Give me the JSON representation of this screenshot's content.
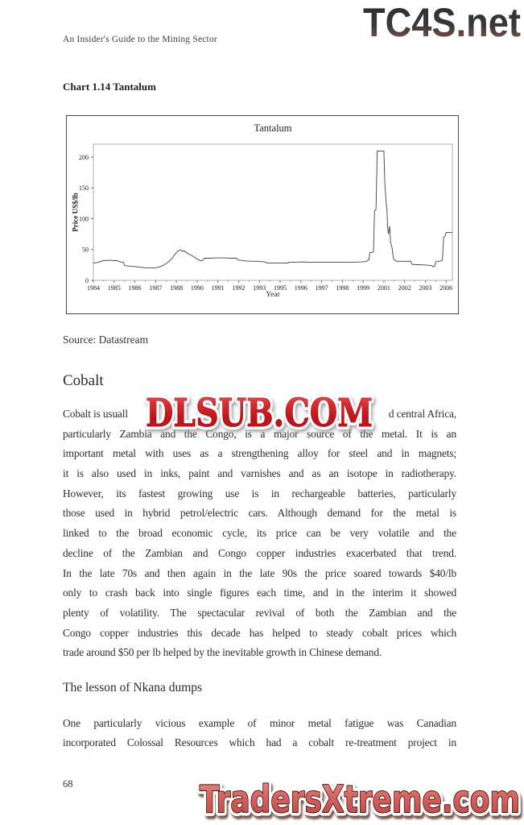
{
  "page": {
    "header": "An Insider's Guide to the Mining Sector",
    "page_number": "68"
  },
  "watermarks": {
    "top_right": "TC4S.net",
    "middle": "DLSUB.COM",
    "bottom": "TradersXtreme.com"
  },
  "colors": {
    "watermark_red": "#c6191f",
    "watermark_salmon": "#d4625f",
    "logo_dark": "#343434",
    "body_text": "#2e2e2e",
    "chart_line": "#3f3f3f"
  },
  "chart_section": {
    "label": "Chart 1.14 Tantalum",
    "source": "Source: Datastream"
  },
  "chart_data": {
    "type": "line",
    "title": "Tantalum",
    "xlabel": "Year",
    "ylabel": "Price US$/lb",
    "legend": "none",
    "grid": false,
    "ylim": [
      0,
      221
    ],
    "yticks": [
      0,
      50,
      100,
      150,
      200
    ],
    "xtick_labels": [
      "1984",
      "1985",
      "1986",
      "1987",
      "1988",
      "1990",
      "1991",
      "1992",
      "1993",
      "1995",
      "1996",
      "1997",
      "1998",
      "1999",
      "2001",
      "2002",
      "2003",
      "2006"
    ],
    "xlim": [
      0,
      17.3
    ],
    "x_unit": "tick-index (labels unevenly skip years)",
    "series": [
      {
        "name": "Tantalum price US$/lb",
        "points": [
          [
            0,
            28
          ],
          [
            0.2,
            29
          ],
          [
            0.35,
            31
          ],
          [
            0.5,
            32
          ],
          [
            0.75,
            32.5
          ],
          [
            1.0,
            32
          ],
          [
            1.15,
            32
          ],
          [
            1.3,
            30
          ],
          [
            1.45,
            29.5
          ],
          [
            1.5,
            24
          ],
          [
            1.75,
            23
          ],
          [
            2.0,
            22.5
          ],
          [
            2.2,
            21.5
          ],
          [
            2.5,
            20.5
          ],
          [
            2.8,
            20
          ],
          [
            3.0,
            20.5
          ],
          [
            3.2,
            22
          ],
          [
            3.35,
            24
          ],
          [
            3.5,
            27
          ],
          [
            3.65,
            31
          ],
          [
            3.8,
            36
          ],
          [
            3.9,
            41
          ],
          [
            4.0,
            45
          ],
          [
            4.1,
            48
          ],
          [
            4.2,
            49.5
          ],
          [
            4.3,
            47
          ],
          [
            4.35,
            48
          ],
          [
            4.45,
            46
          ],
          [
            4.55,
            43.5
          ],
          [
            4.7,
            41
          ],
          [
            4.85,
            38
          ],
          [
            5.0,
            34.5
          ],
          [
            5.1,
            33
          ],
          [
            5.2,
            31.5
          ],
          [
            5.28,
            33
          ],
          [
            5.35,
            36
          ],
          [
            5.6,
            36
          ],
          [
            5.95,
            36.5
          ],
          [
            6.3,
            36.5
          ],
          [
            6.6,
            36
          ],
          [
            6.9,
            36
          ],
          [
            6.97,
            33
          ],
          [
            7.1,
            32.5
          ],
          [
            7.35,
            31.5
          ],
          [
            7.7,
            31
          ],
          [
            7.98,
            31
          ],
          [
            8.02,
            30.5
          ],
          [
            8.3,
            30
          ],
          [
            8.36,
            28
          ],
          [
            8.7,
            28
          ],
          [
            9.0,
            28
          ],
          [
            9.38,
            28
          ],
          [
            9.42,
            29.5
          ],
          [
            9.7,
            29.5
          ],
          [
            10.0,
            30
          ],
          [
            10.35,
            29.5
          ],
          [
            11.0,
            29.5
          ],
          [
            11.5,
            29.5
          ],
          [
            12.0,
            29.5
          ],
          [
            12.5,
            29.5
          ],
          [
            12.9,
            30
          ],
          [
            13.15,
            30.5
          ],
          [
            13.22,
            33
          ],
          [
            13.28,
            33
          ],
          [
            13.32,
            45
          ],
          [
            13.45,
            45.5
          ],
          [
            13.5,
            47
          ],
          [
            13.55,
            113
          ],
          [
            13.62,
            115
          ],
          [
            13.68,
            210
          ],
          [
            14.0,
            210
          ],
          [
            14.05,
            155
          ],
          [
            14.1,
            130
          ],
          [
            14.15,
            113
          ],
          [
            14.18,
            85
          ],
          [
            14.22,
            75
          ],
          [
            14.28,
            88
          ],
          [
            14.32,
            62
          ],
          [
            14.4,
            52
          ],
          [
            14.45,
            37
          ],
          [
            14.5,
            33
          ],
          [
            14.6,
            31
          ],
          [
            15.0,
            31
          ],
          [
            15.3,
            31
          ],
          [
            15.35,
            26
          ],
          [
            15.6,
            25.5
          ],
          [
            16.0,
            25
          ],
          [
            16.2,
            24.5
          ],
          [
            16.3,
            24
          ],
          [
            16.38,
            22
          ],
          [
            16.45,
            23
          ],
          [
            16.5,
            30
          ],
          [
            16.6,
            31
          ],
          [
            16.75,
            31.5
          ],
          [
            16.82,
            33
          ],
          [
            16.88,
            70
          ],
          [
            16.95,
            72
          ],
          [
            17.0,
            78
          ],
          [
            17.3,
            78
          ]
        ]
      }
    ]
  },
  "article": {
    "heading": "Cobalt",
    "subheading": "The lesson of Nkana dumps",
    "paragraph1": {
      "line1_left": "Cobalt is usuall",
      "line1_right": "d central Africa,",
      "lines": [
        "particularly Zambia and the Congo, is a major source of the metal. It is an",
        "important metal with uses as a strengthening alloy for steel and in magnets;",
        "it is also used in inks, paint and varnishes and as an isotope in radiotherapy.",
        "However, its fastest growing use is in rechargeable batteries, particularly",
        "those used in hybrid petrol/electric cars. Although demand for the metal is",
        "linked to the broad economic cycle, its price can be very volatile and the",
        "decline of the Zambian and Congo copper industries exacerbated that trend.",
        "In the late 70s and then again in the late 90s the price soared towards $40/lb",
        "only to crash back into single figures each time, and in the interim it showed",
        "plenty of volatility. The spectacular revival of both the Zambian and the",
        "Congo copper industries this decade has helped to steady cobalt prices which",
        "trade around $50 per lb helped by the inevitable growth in Chinese demand."
      ]
    },
    "paragraph2": {
      "lines": [
        "One particularly vicious example of minor metal fatigue was Canadian",
        "incorporated Colossal Resources which had a cobalt re-treatment project in"
      ]
    }
  }
}
